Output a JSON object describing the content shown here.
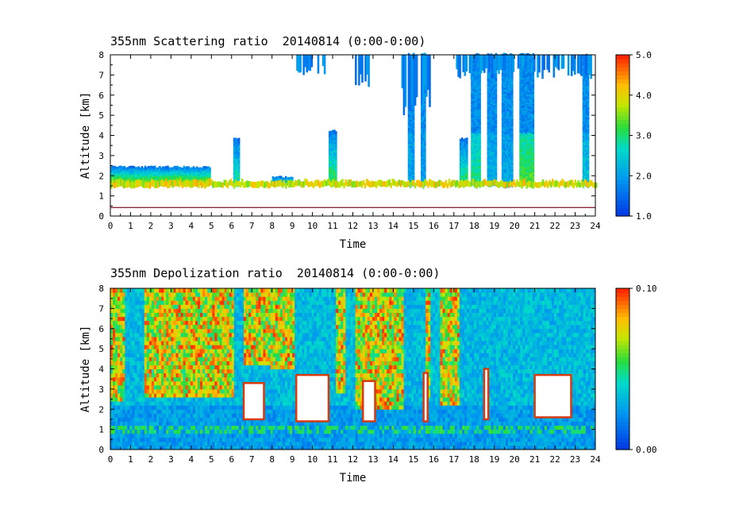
{
  "chart_data": [
    {
      "type": "heatmap",
      "title": "355nm Scattering ratio  20140814 (0:00-0:00)",
      "xlabel": "Time",
      "ylabel": "Altitude [km]",
      "xlim": [
        0,
        24
      ],
      "ylim": [
        0,
        8
      ],
      "xticks": [
        "0",
        "1",
        "2",
        "3",
        "4",
        "5",
        "6",
        "7",
        "8",
        "9",
        "10",
        "11",
        "12",
        "13",
        "14",
        "15",
        "16",
        "17",
        "18",
        "19",
        "20",
        "21",
        "22",
        "23",
        "24"
      ],
      "yticks": [
        "0",
        "1",
        "2",
        "3",
        "4",
        "5",
        "6",
        "7",
        "8"
      ],
      "colorbar": {
        "min": 1.0,
        "max": 5.0,
        "ticks": [
          "1.0",
          "2.0",
          "3.0",
          "4.0",
          "5.0"
        ]
      },
      "cloud_base_km": 1.45,
      "ground_line_km": 0.42,
      "features": [
        {
          "x0": 0.0,
          "x1": 4.9,
          "top": 2.4,
          "peak": 4.2
        },
        {
          "x0": 6.05,
          "x1": 6.4,
          "top": 3.8,
          "peak": 3.0
        },
        {
          "x0": 8.0,
          "x1": 9.0,
          "top": 1.9,
          "peak": 3.6
        },
        {
          "x0": 10.8,
          "x1": 11.2,
          "top": 4.2,
          "peak": 3.4
        },
        {
          "x0": 14.7,
          "x1": 15.0,
          "top": 8.0,
          "peak": 2.1
        },
        {
          "x0": 15.3,
          "x1": 15.6,
          "top": 8.0,
          "peak": 2.0
        },
        {
          "x0": 17.2,
          "x1": 17.6,
          "top": 3.8,
          "peak": 3.2
        },
        {
          "x0": 17.8,
          "x1": 18.3,
          "top": 8.0,
          "peak": 3.0
        },
        {
          "x0": 18.6,
          "x1": 19.1,
          "top": 8.0,
          "peak": 2.2
        },
        {
          "x0": 19.3,
          "x1": 19.9,
          "top": 8.0,
          "peak": 2.1
        },
        {
          "x0": 20.2,
          "x1": 20.9,
          "top": 8.0,
          "peak": 3.4
        },
        {
          "x0": 23.3,
          "x1": 23.6,
          "top": 8.0,
          "peak": 2.4
        }
      ],
      "upper_clouds": [
        {
          "x0": 9.2,
          "x1": 10.6,
          "base": 6.9,
          "top": 8.0
        },
        {
          "x0": 12.1,
          "x1": 12.9,
          "base": 6.2,
          "top": 8.0
        },
        {
          "x0": 14.4,
          "x1": 15.8,
          "base": 5.0,
          "top": 8.0
        },
        {
          "x0": 17.1,
          "x1": 23.8,
          "base": 6.8,
          "top": 8.0
        }
      ]
    },
    {
      "type": "heatmap",
      "title": "355nm Depolization ratio  20140814 (0:00-0:00)",
      "xlabel": "Time",
      "ylabel": "Altitude [km]",
      "xlim": [
        0,
        24
      ],
      "ylim": [
        0,
        8
      ],
      "xticks": [
        "0",
        "1",
        "2",
        "3",
        "4",
        "5",
        "6",
        "7",
        "8",
        "9",
        "10",
        "11",
        "12",
        "13",
        "14",
        "15",
        "16",
        "17",
        "18",
        "19",
        "20",
        "21",
        "22",
        "23",
        "24"
      ],
      "yticks": [
        "0",
        "1",
        "2",
        "3",
        "4",
        "5",
        "6",
        "7",
        "8"
      ],
      "colorbar": {
        "min": 0.0,
        "max": 0.1,
        "ticks": [
          "0.00",
          "0.10"
        ]
      },
      "noisy_regions": [
        {
          "x0": 0.0,
          "x1": 0.7,
          "base": 2.2
        },
        {
          "x0": 1.6,
          "x1": 6.1,
          "base": 2.5
        },
        {
          "x0": 6.6,
          "x1": 7.9,
          "base": 4.2
        },
        {
          "x0": 7.9,
          "x1": 9.1,
          "base": 4.0
        },
        {
          "x0": 11.1,
          "x1": 11.6,
          "base": 2.8
        },
        {
          "x0": 12.0,
          "x1": 14.4,
          "base": 1.8
        },
        {
          "x0": 15.5,
          "x1": 15.8,
          "base": 2.5
        },
        {
          "x0": 16.2,
          "x1": 17.2,
          "base": 2.0
        }
      ],
      "saturated_blocks": [
        {
          "x0": 6.6,
          "x1": 7.6,
          "base": 1.5,
          "top": 3.3
        },
        {
          "x0": 9.2,
          "x1": 10.8,
          "base": 1.4,
          "top": 3.7
        },
        {
          "x0": 12.5,
          "x1": 13.1,
          "base": 1.4,
          "top": 3.4
        },
        {
          "x0": 15.5,
          "x1": 15.7,
          "base": 1.4,
          "top": 3.8
        },
        {
          "x0": 18.5,
          "x1": 18.7,
          "base": 1.5,
          "top": 4.0
        },
        {
          "x0": 21.0,
          "x1": 22.8,
          "base": 1.6,
          "top": 3.7
        }
      ]
    }
  ]
}
